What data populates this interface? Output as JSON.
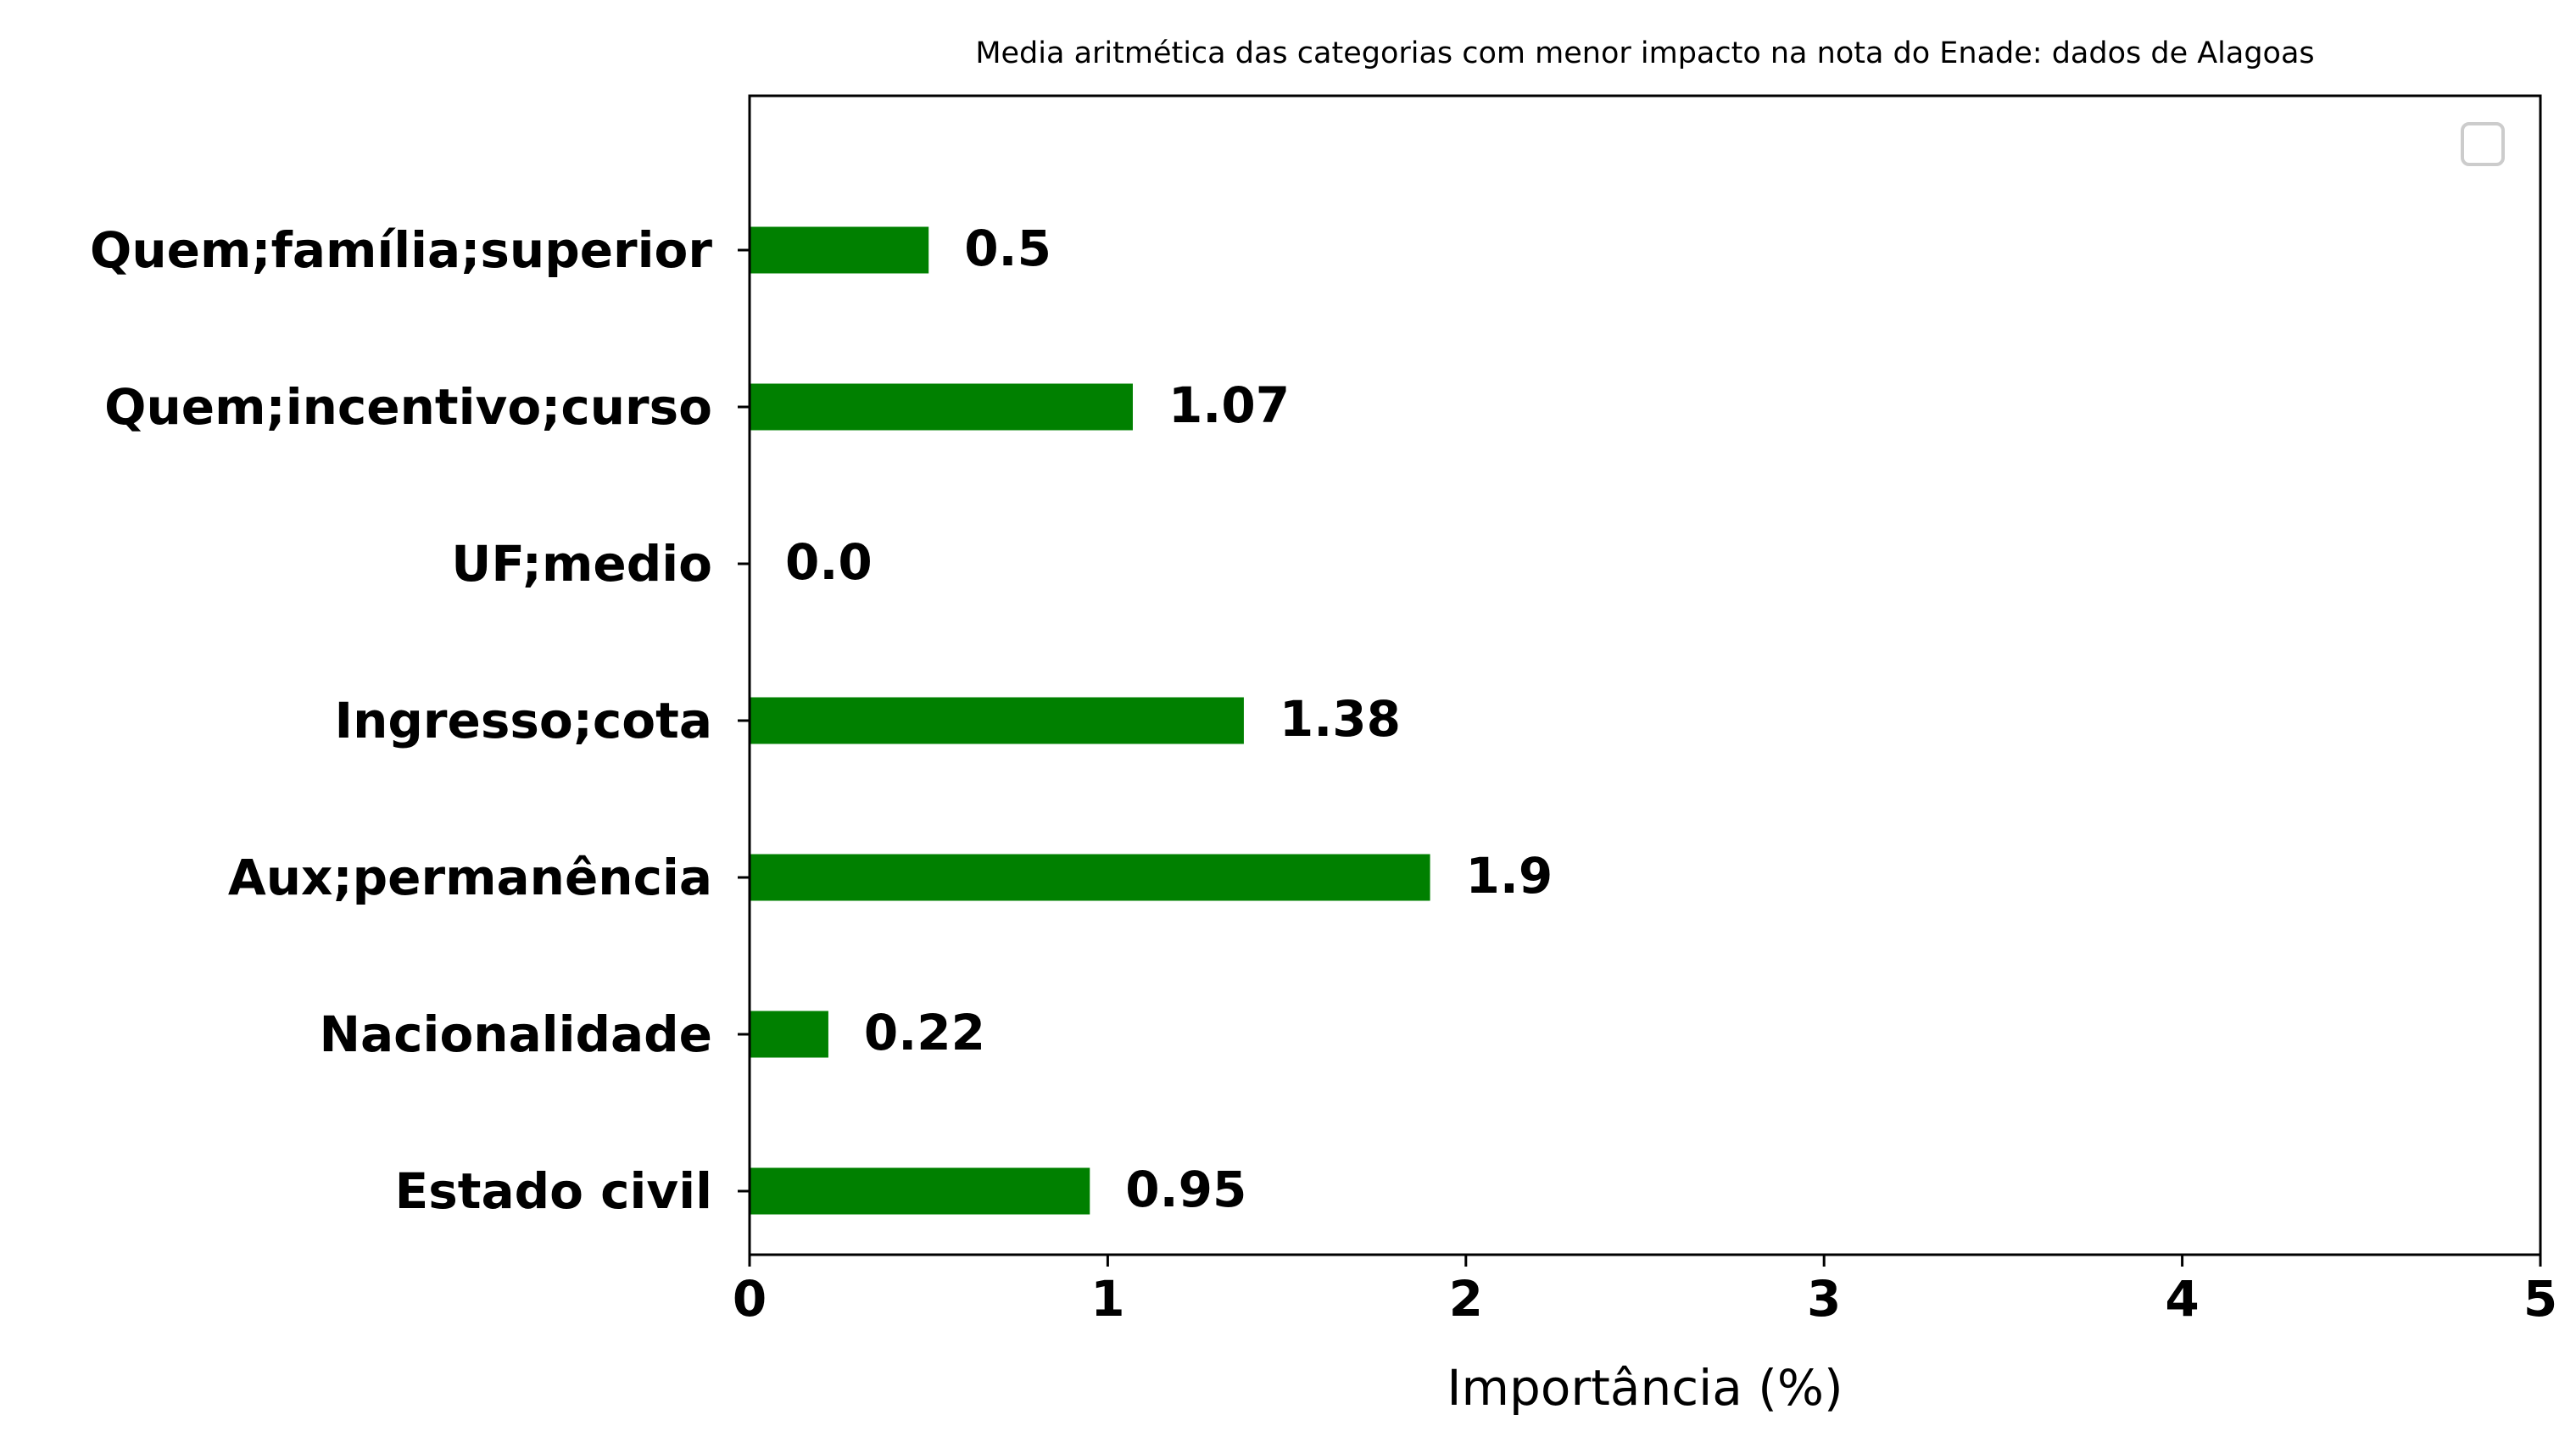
{
  "chart_data": {
    "type": "bar",
    "orientation": "horizontal",
    "title": "Media aritmética das categorias com menor impacto na nota do Enade: dados de Alagoas",
    "xlabel": "Importância (%)",
    "ylabel": "",
    "categories": [
      "Estado civil",
      "Nacionalidade",
      "Aux;permanência",
      "Ingresso;cota",
      "UF;medio",
      "Quem;incentivo;curso",
      "Quem;família;superior"
    ],
    "values": [
      0.95,
      0.22,
      1.9,
      1.38,
      0.0,
      1.07,
      0.5
    ],
    "value_labels": [
      "0.95",
      "0.22",
      "1.9",
      "1.38",
      "0.0",
      "1.07",
      "0.5"
    ],
    "xlim": [
      0,
      5
    ],
    "xticks": [
      0,
      1,
      2,
      3,
      4,
      5
    ],
    "xtick_labels": [
      "0",
      "1",
      "2",
      "3",
      "4",
      "5"
    ],
    "grid": false,
    "legend": {
      "placement": "top-right",
      "entries": []
    },
    "colors": {
      "bar": "#008000",
      "axis": "#000000",
      "legend_border": "#cccccc"
    }
  }
}
